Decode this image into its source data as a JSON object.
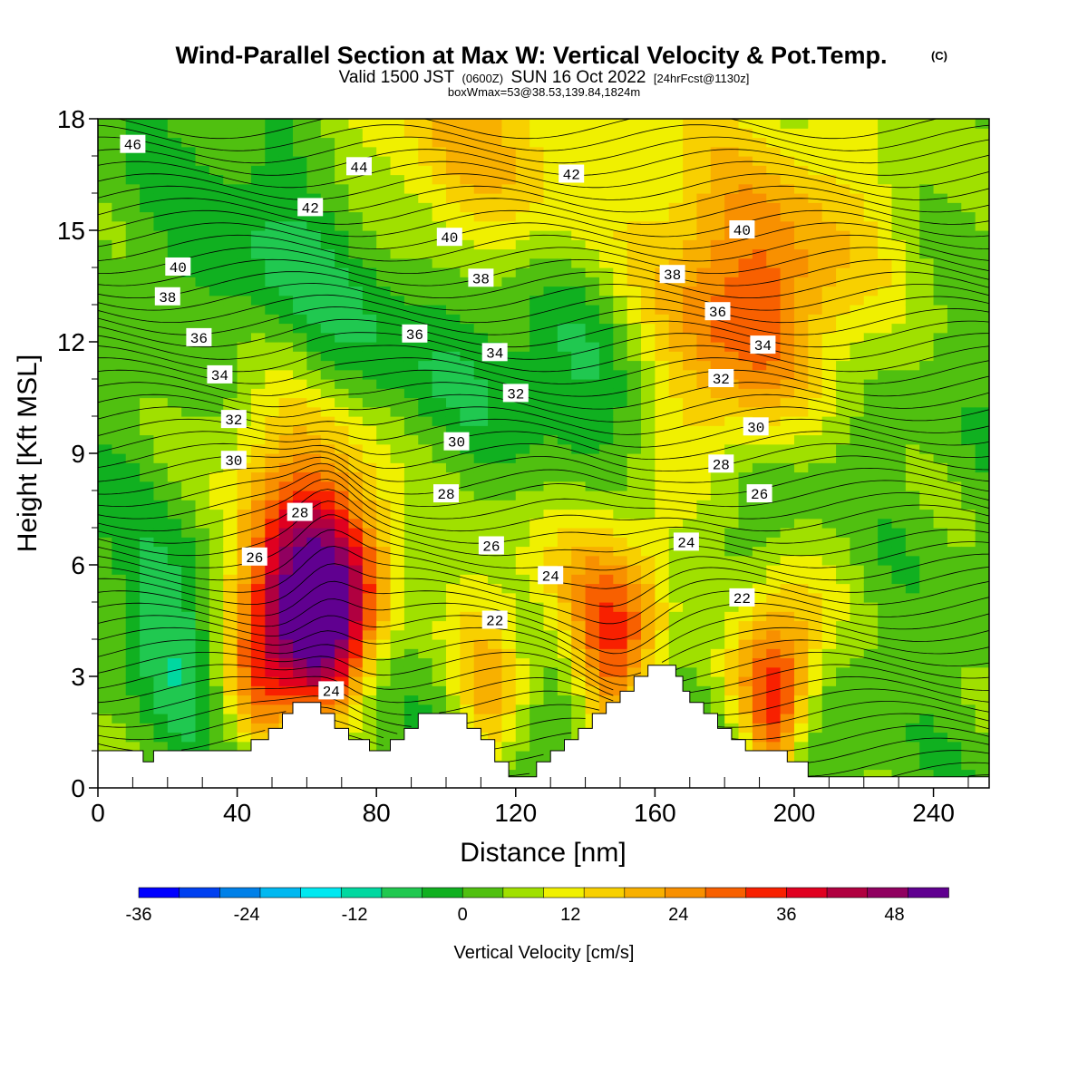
{
  "title": {
    "main": "Wind-Parallel Section at Max W: Vertical Velocity & Pot.Temp.",
    "copyright": "(C)",
    "valid_a": "Valid 1500 JST",
    "valid_b": "(0600Z)",
    "valid_c": "SUN 16 Oct 2022",
    "valid_d": "[24hrFcst@1130z]",
    "box": "boxWmax=53@38.53,139.84,1824m"
  },
  "chart_data": {
    "type": "heatmap",
    "xlabel": "Distance [nm]",
    "ylabel": "Height [Kft MSL]",
    "xlim": [
      0,
      256
    ],
    "ylim": [
      0,
      18
    ],
    "x_ticks": [
      0,
      40,
      80,
      120,
      160,
      200,
      240
    ],
    "y_ticks": [
      0,
      3,
      6,
      9,
      12,
      15,
      18
    ],
    "colorbar": {
      "label": "Vertical Velocity [cm/s]",
      "min": -36,
      "max": 54,
      "step": 4,
      "tick_values": [
        -36,
        -24,
        -12,
        0,
        12,
        24,
        36,
        48
      ],
      "colors": [
        "#0000ff",
        "#0040f0",
        "#0080e8",
        "#00b8f0",
        "#00e8f0",
        "#00d8a0",
        "#20c850",
        "#10b020",
        "#50c010",
        "#a0e000",
        "#f0f000",
        "#f8d000",
        "#f8b000",
        "#f89000",
        "#f86000",
        "#f82000",
        "#e00020",
        "#b00040",
        "#900060",
        "#600090"
      ]
    },
    "w_field": {
      "description_of_units": "cm/s",
      "background": -2,
      "features": [
        {
          "x": 65,
          "z": 4.6,
          "amp": 46
        },
        {
          "x": 48,
          "z": 3.6,
          "amp": 26
        },
        {
          "x": 148,
          "z": 4.2,
          "amp": 26
        },
        {
          "x": 194,
          "z": 3.0,
          "amp": 30
        },
        {
          "x": 112,
          "z": 3.0,
          "amp": 14
        },
        {
          "x": 101,
          "z": 16.5,
          "amp": 20
        },
        {
          "x": 173,
          "z": 12.0,
          "amp": 22
        },
        {
          "x": 60,
          "z": 10.0,
          "amp": 10
        },
        {
          "x": 195,
          "z": 14.0,
          "amp": 12
        },
        {
          "x": 64,
          "z": 14.0,
          "amp": -12
        },
        {
          "x": 150,
          "z": 11.5,
          "amp": -14
        },
        {
          "x": 25,
          "z": 4.2,
          "amp": -11
        },
        {
          "x": 92,
          "z": 12.0,
          "amp": -9
        },
        {
          "x": 188,
          "z": 6.0,
          "amp": -8
        }
      ]
    },
    "theta_contour_labels": [
      {
        "text": "46",
        "x": 10,
        "z": 17.3
      },
      {
        "text": "44",
        "x": 75,
        "z": 16.7
      },
      {
        "text": "42",
        "x": 61,
        "z": 15.6
      },
      {
        "text": "42",
        "x": 136,
        "z": 16.5
      },
      {
        "text": "40",
        "x": 23,
        "z": 14.0
      },
      {
        "text": "40",
        "x": 101,
        "z": 14.8
      },
      {
        "text": "40",
        "x": 185,
        "z": 15.0
      },
      {
        "text": "38",
        "x": 20,
        "z": 13.2
      },
      {
        "text": "38",
        "x": 110,
        "z": 13.7
      },
      {
        "text": "38",
        "x": 165,
        "z": 13.8
      },
      {
        "text": "36",
        "x": 29,
        "z": 12.1
      },
      {
        "text": "36",
        "x": 91,
        "z": 12.2
      },
      {
        "text": "36",
        "x": 178,
        "z": 12.8
      },
      {
        "text": "34",
        "x": 35,
        "z": 11.1
      },
      {
        "text": "34",
        "x": 114,
        "z": 11.7
      },
      {
        "text": "34",
        "x": 191,
        "z": 11.9
      },
      {
        "text": "32",
        "x": 39,
        "z": 9.9
      },
      {
        "text": "32",
        "x": 120,
        "z": 10.6
      },
      {
        "text": "32",
        "x": 179,
        "z": 11.0
      },
      {
        "text": "30",
        "x": 39,
        "z": 8.8
      },
      {
        "text": "30",
        "x": 103,
        "z": 9.3
      },
      {
        "text": "30",
        "x": 189,
        "z": 9.7
      },
      {
        "text": "28",
        "x": 58,
        "z": 7.4
      },
      {
        "text": "28",
        "x": 100,
        "z": 7.9
      },
      {
        "text": "28",
        "x": 179,
        "z": 8.7
      },
      {
        "text": "26",
        "x": 45,
        "z": 6.2
      },
      {
        "text": "26",
        "x": 113,
        "z": 6.5
      },
      {
        "text": "26",
        "x": 190,
        "z": 7.9
      },
      {
        "text": "24",
        "x": 130,
        "z": 5.7
      },
      {
        "text": "24",
        "x": 169,
        "z": 6.6
      },
      {
        "text": "24",
        "x": 67,
        "z": 2.6
      },
      {
        "text": "22",
        "x": 114,
        "z": 4.5
      },
      {
        "text": "22",
        "x": 185,
        "z": 5.1
      }
    ],
    "terrain_kft": [
      [
        0,
        1.0
      ],
      [
        13,
        1.0
      ],
      [
        13,
        0.7
      ],
      [
        16,
        0.7
      ],
      [
        16,
        1.0
      ],
      [
        44,
        1.0
      ],
      [
        44,
        1.3
      ],
      [
        49,
        1.3
      ],
      [
        49,
        1.6
      ],
      [
        53,
        1.6
      ],
      [
        53,
        2.0
      ],
      [
        56,
        2.0
      ],
      [
        56,
        2.3
      ],
      [
        64,
        2.3
      ],
      [
        64,
        2.0
      ],
      [
        68,
        2.0
      ],
      [
        68,
        1.6
      ],
      [
        72,
        1.6
      ],
      [
        72,
        1.3
      ],
      [
        78,
        1.3
      ],
      [
        78,
        1.0
      ],
      [
        84,
        1.0
      ],
      [
        84,
        1.3
      ],
      [
        88,
        1.3
      ],
      [
        88,
        1.6
      ],
      [
        92,
        1.6
      ],
      [
        92,
        2.0
      ],
      [
        106,
        2.0
      ],
      [
        106,
        1.6
      ],
      [
        110,
        1.6
      ],
      [
        110,
        1.3
      ],
      [
        114,
        1.3
      ],
      [
        114,
        0.7
      ],
      [
        118,
        0.7
      ],
      [
        118,
        0.3
      ],
      [
        126,
        0.3
      ],
      [
        126,
        0.7
      ],
      [
        130,
        0.7
      ],
      [
        130,
        1.0
      ],
      [
        134,
        1.0
      ],
      [
        134,
        1.3
      ],
      [
        138,
        1.3
      ],
      [
        138,
        1.6
      ],
      [
        142,
        1.6
      ],
      [
        142,
        2.0
      ],
      [
        146,
        2.0
      ],
      [
        146,
        2.3
      ],
      [
        150,
        2.3
      ],
      [
        150,
        2.6
      ],
      [
        154,
        2.6
      ],
      [
        154,
        3.0
      ],
      [
        158,
        3.0
      ],
      [
        158,
        3.3
      ],
      [
        166,
        3.3
      ],
      [
        166,
        3.0
      ],
      [
        168,
        3.0
      ],
      [
        168,
        2.6
      ],
      [
        170,
        2.6
      ],
      [
        170,
        2.3
      ],
      [
        174,
        2.3
      ],
      [
        174,
        2.0
      ],
      [
        178,
        2.0
      ],
      [
        178,
        1.6
      ],
      [
        182,
        1.6
      ],
      [
        182,
        1.3
      ],
      [
        186,
        1.3
      ],
      [
        186,
        1.0
      ],
      [
        198,
        1.0
      ],
      [
        198,
        0.7
      ],
      [
        204,
        0.7
      ],
      [
        204,
        0.3
      ],
      [
        256,
        0.3
      ]
    ]
  }
}
